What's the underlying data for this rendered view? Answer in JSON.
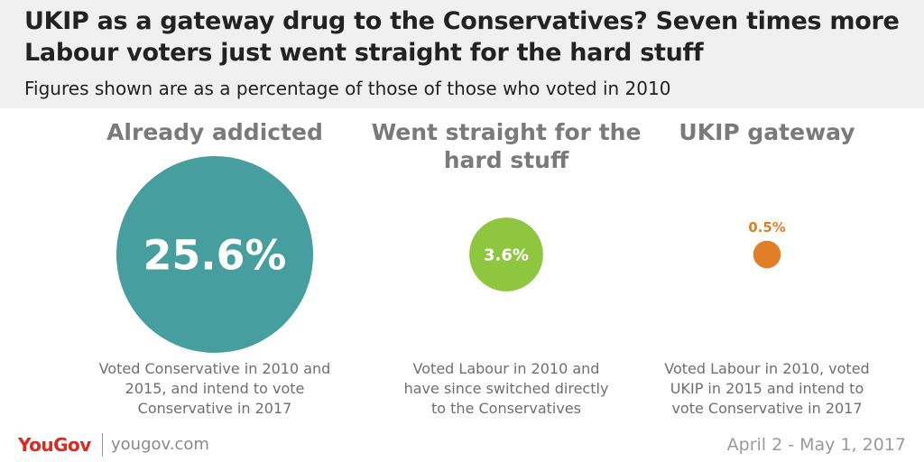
{
  "header": {
    "title_line1": "UKIP as a gateway drug to the Conservatives? Seven times more",
    "title_line2": "Labour voters just went straight for the hard stuff",
    "subtitle": "Figures shown are as a percentage of those of those who voted in 2010"
  },
  "chart_data": {
    "type": "bubble",
    "title": "UKIP as a gateway drug to the Conservatives? Seven times more Labour voters just went straight for the hard stuff",
    "subtitle": "Figures shown are as a percentage of those of those who voted in 2010",
    "unit": "%",
    "categories": [
      "Already addicted",
      "Went straight for the hard stuff",
      "UKIP gateway"
    ],
    "values": [
      25.6,
      3.6,
      0.5
    ],
    "labels": [
      "25.6%",
      "3.6%",
      "0.5%"
    ],
    "colors": [
      "#469e9f",
      "#8ec63f",
      "#e07f28"
    ],
    "heading_lines": [
      [
        "Already addicted"
      ],
      [
        "Went straight for the",
        "hard stuff"
      ],
      [
        "UKIP gateway"
      ]
    ],
    "descriptions": [
      [
        "Voted Conservative in 2010 and",
        "2015, and intend to vote",
        "Conservative in 2017"
      ],
      [
        "Voted Labour in 2010 and",
        "have since switched directly",
        "to the Conservatives"
      ],
      [
        "Voted Labour in 2010, voted",
        "UKIP in 2015 and intend to",
        "vote Conservative in 2017"
      ]
    ],
    "label_position": [
      "inside",
      "inside",
      "above"
    ]
  },
  "footer": {
    "brand": "YouGov",
    "url": "yougov.com",
    "date_range": "April 2 - May 1, 2017"
  }
}
